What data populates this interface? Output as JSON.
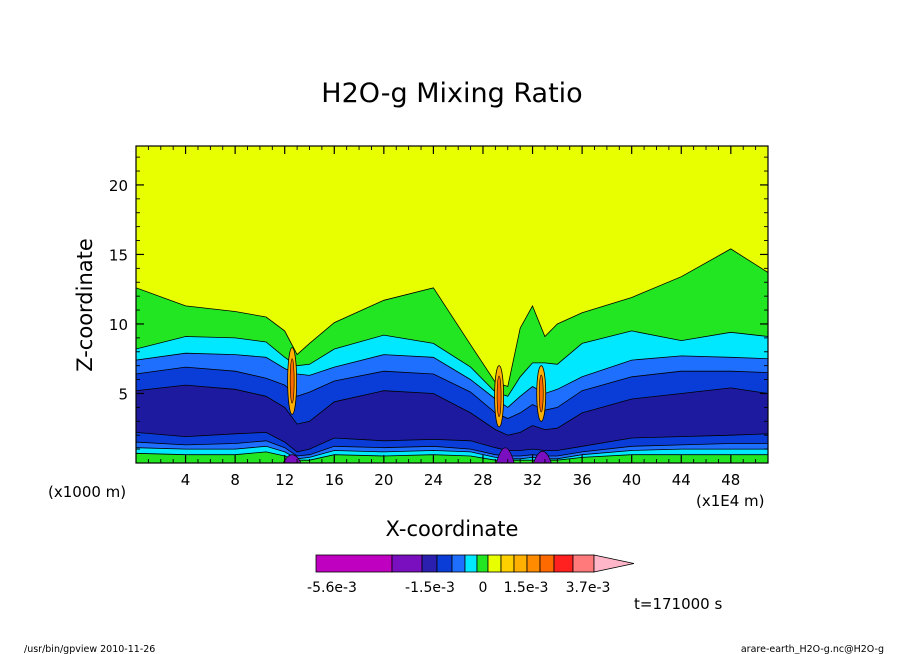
{
  "chart_data": {
    "type": "heatmap",
    "title": "H2O-g Mixing Ratio",
    "xlabel": "X-coordinate",
    "ylabel": "Z-coordinate",
    "x_units": "(x1000 m)",
    "x_scale_note": "(x1E4 m)",
    "xlim": [
      0,
      51
    ],
    "ylim": [
      0,
      22.8
    ],
    "x_ticks": [
      4,
      8,
      12,
      16,
      20,
      24,
      28,
      32,
      36,
      40,
      44,
      48
    ],
    "y_ticks": [
      5,
      10,
      15,
      20
    ],
    "colorbar": {
      "tick_labels": [
        {
          "label": "-5.6e-3",
          "value": -0.0056
        },
        {
          "label": "-1.5e-3",
          "value": -0.0015
        },
        {
          "label": "0",
          "value": 0
        },
        {
          "label": "1.5e-3",
          "value": 0.0015
        },
        {
          "label": "3.7e-3",
          "value": 0.0037
        }
      ],
      "colors": [
        "#c000c0",
        "#7a0fbf",
        "#2a1faf",
        "#0a3dd8",
        "#1f6fff",
        "#00e8ff",
        "#22e622",
        "#e8ff00",
        "#ffd000",
        "#ffb000",
        "#ff8c00",
        "#ff6a00",
        "#ff2020",
        "#ff7a7a",
        "#ffb6c8"
      ],
      "orientation": "horizontal",
      "extend": "max"
    },
    "profile_x": [
      0,
      4,
      8,
      10.5,
      12,
      13,
      14,
      16,
      20,
      24,
      27,
      29,
      30,
      31,
      32,
      33,
      34,
      36,
      40,
      44,
      48,
      51
    ],
    "levels": [
      {
        "name": "green-top",
        "color": "#22e622",
        "z": [
          12.6,
          11.3,
          10.9,
          10.5,
          9.5,
          7.8,
          8.6,
          10.1,
          11.7,
          12.6,
          8.5,
          5.8,
          5.5,
          9.7,
          11.3,
          9.1,
          10.0,
          10.8,
          11.9,
          13.4,
          15.4,
          13.7
        ]
      },
      {
        "name": "cyan-top",
        "color": "#00e8ff",
        "z": [
          8.2,
          9.1,
          9.0,
          8.7,
          7.6,
          7.0,
          7.1,
          8.2,
          9.2,
          8.6,
          6.9,
          5.1,
          4.8,
          6.2,
          7.2,
          7.2,
          7.1,
          8.6,
          9.5,
          8.8,
          9.4,
          9.1
        ]
      },
      {
        "name": "blue-top",
        "color": "#1f6fff",
        "z": [
          7.4,
          7.9,
          7.8,
          7.6,
          6.8,
          6.4,
          6.3,
          6.9,
          7.8,
          7.6,
          6.0,
          4.6,
          4.0,
          4.8,
          5.5,
          5.0,
          5.3,
          6.2,
          7.4,
          7.7,
          7.6,
          7.5
        ]
      },
      {
        "name": "dark-blue-top",
        "color": "#0a3dd8",
        "z": [
          6.4,
          6.9,
          6.6,
          6.1,
          5.6,
          4.8,
          5.1,
          5.9,
          6.6,
          6.4,
          5.1,
          3.6,
          3.2,
          3.6,
          4.2,
          3.8,
          4.0,
          5.2,
          6.2,
          6.6,
          6.6,
          6.5
        ]
      },
      {
        "name": "navy-top",
        "color": "#1e1aa0",
        "z": [
          5.2,
          5.6,
          5.3,
          4.8,
          4.0,
          2.8,
          3.0,
          4.4,
          5.2,
          5.0,
          3.6,
          2.4,
          2.0,
          2.2,
          2.7,
          2.4,
          2.5,
          3.6,
          4.6,
          5.0,
          5.4,
          5.0
        ]
      },
      {
        "name": "navy-bottom",
        "color": "#0a3dd8",
        "z": [
          2.2,
          1.9,
          2.1,
          2.2,
          1.5,
          0.8,
          1.0,
          1.8,
          1.6,
          1.7,
          1.6,
          1.1,
          0.9,
          0.9,
          1.0,
          0.9,
          0.9,
          1.2,
          1.8,
          1.9,
          2.0,
          2.1
        ]
      },
      {
        "name": "dark-blue-bottom",
        "color": "#1f6fff",
        "z": [
          1.5,
          1.3,
          1.4,
          1.6,
          1.1,
          0.5,
          0.6,
          1.2,
          1.1,
          1.2,
          1.0,
          0.6,
          0.5,
          0.5,
          0.6,
          0.5,
          0.5,
          0.8,
          1.2,
          1.3,
          1.4,
          1.4
        ]
      },
      {
        "name": "blue-bottom",
        "color": "#00e8ff",
        "z": [
          1.1,
          1.0,
          1.0,
          1.2,
          0.8,
          0.3,
          0.4,
          0.9,
          0.8,
          0.9,
          0.8,
          0.4,
          0.3,
          0.3,
          0.4,
          0.3,
          0.3,
          0.6,
          0.9,
          1.0,
          1.0,
          1.0
        ]
      },
      {
        "name": "green-bottom",
        "color": "#22e622",
        "z": [
          0.7,
          0.6,
          0.6,
          0.8,
          0.5,
          0.2,
          0.2,
          0.6,
          0.5,
          0.6,
          0.5,
          0.2,
          0.2,
          0.2,
          0.2,
          0.2,
          0.2,
          0.4,
          0.6,
          0.6,
          0.6,
          0.6
        ]
      }
    ],
    "background_color": "#e8ff00"
  },
  "time_label": "t=171000 s",
  "footer_left": "/usr/bin/gpview  2010-11-26",
  "footer_right": "arare-earth_H2O-g.nc@H2O-g"
}
